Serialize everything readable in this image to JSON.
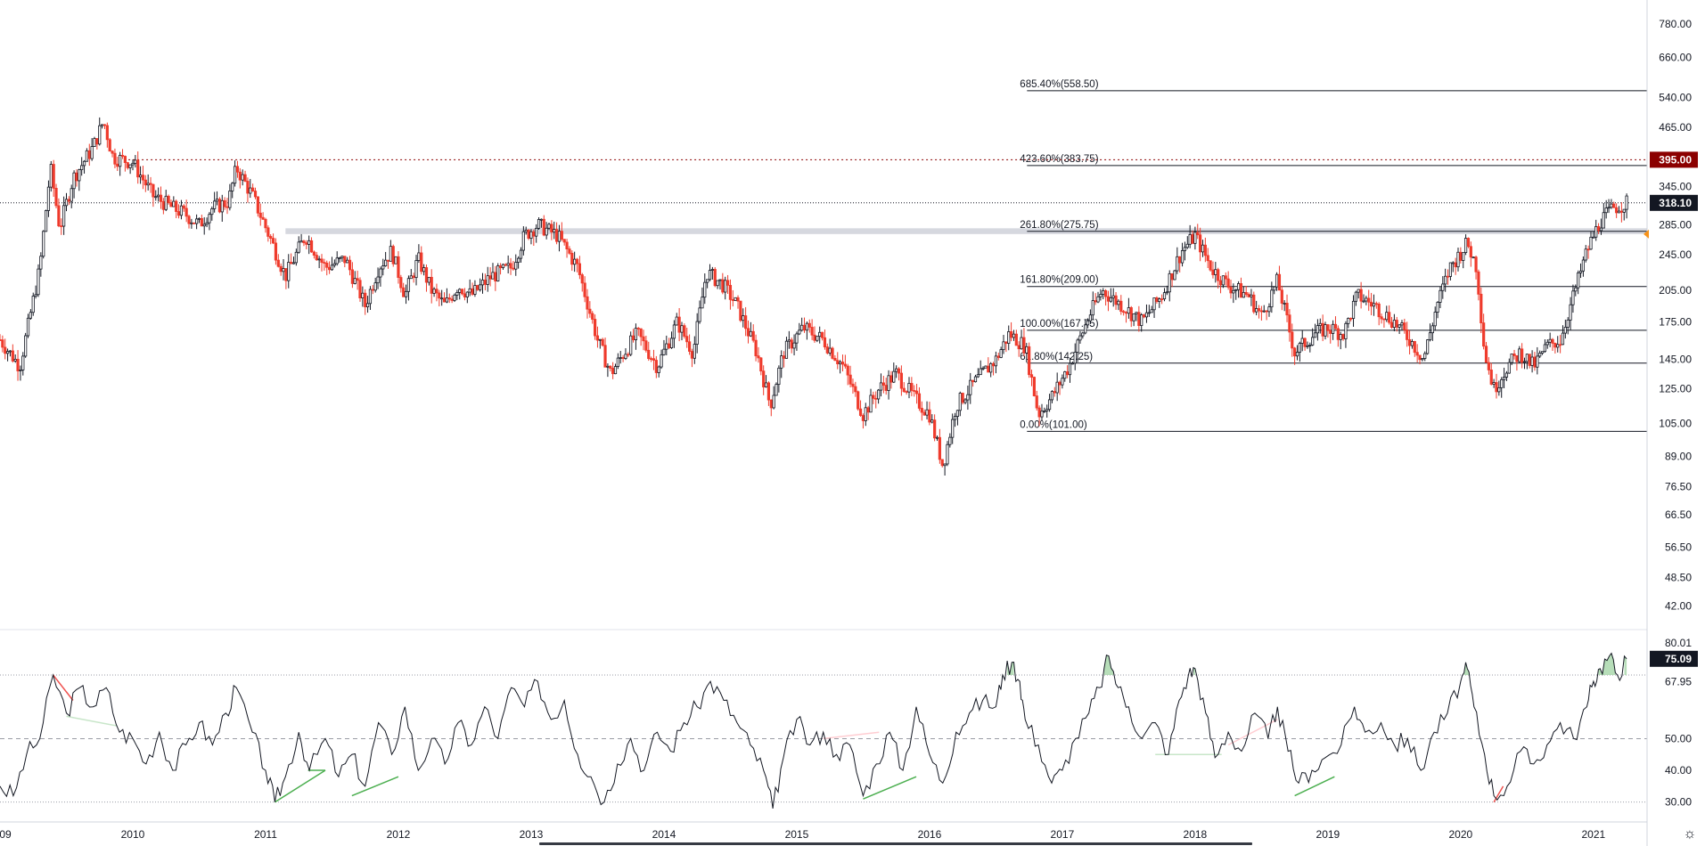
{
  "chart_data": [
    {
      "type": "candlestick",
      "scale": "log",
      "grid": false,
      "ylim": [
        38,
        850
      ],
      "price_ticks": [
        "780.00",
        "660.00",
        "540.00",
        "465.00",
        "395.00",
        "345.00",
        "318.10",
        "285.00",
        "245.00",
        "205.00",
        "175.00",
        "145.00",
        "125.00",
        "105.00",
        "89.00",
        "76.50",
        "66.50",
        "56.50",
        "48.50",
        "42.00"
      ],
      "x_ticks": [
        "09",
        "2010",
        "2011",
        "2012",
        "2013",
        "2014",
        "2015",
        "2016",
        "2017",
        "2018",
        "2019",
        "2020",
        "2021"
      ],
      "x_tick_years": [
        2009.0,
        2010.0,
        2011.0,
        2012.0,
        2013.0,
        2014.0,
        2015.0,
        2016.0,
        2017.0,
        2018.0,
        2019.0,
        2020.0,
        2021.0
      ],
      "xlim": [
        2009.0,
        2021.35
      ],
      "last_price": {
        "label": "318.10",
        "value": 318.1,
        "color": "#131722"
      },
      "alert_level": {
        "label": "395.00",
        "value": 395,
        "color": "#8b0000"
      },
      "resistance_zone": {
        "from": 2011.15,
        "low": 272,
        "high": 280
      },
      "fibonacci": {
        "start": 2016.6,
        "levels": [
          {
            "label": "685.40%(558.50)",
            "value": 558.5
          },
          {
            "label": "423.60%(383.75)",
            "value": 383.75
          },
          {
            "label": "261.80%(275.75)",
            "value": 275.75
          },
          {
            "label": "161.80%(209.00)",
            "value": 209.0
          },
          {
            "label": "100.00%(167.75)",
            "value": 167.75
          },
          {
            "label": "61.80%(142.25)",
            "value": 142.25
          },
          {
            "label": "0.00%(101.00)",
            "value": 101.0
          }
        ]
      },
      "price_path": [
        [
          2009.0,
          160
        ],
        [
          2009.15,
          140
        ],
        [
          2009.3,
          230
        ],
        [
          2009.38,
          380
        ],
        [
          2009.45,
          280
        ],
        [
          2009.55,
          360
        ],
        [
          2009.7,
          420
        ],
        [
          2009.78,
          480
        ],
        [
          2009.85,
          400
        ],
        [
          2010.0,
          390
        ],
        [
          2010.15,
          330
        ],
        [
          2010.3,
          310
        ],
        [
          2010.4,
          300
        ],
        [
          2010.5,
          285
        ],
        [
          2010.6,
          310
        ],
        [
          2010.72,
          320
        ],
        [
          2010.78,
          380
        ],
        [
          2010.9,
          330
        ],
        [
          2011.05,
          260
        ],
        [
          2011.15,
          220
        ],
        [
          2011.3,
          270
        ],
        [
          2011.45,
          230
        ],
        [
          2011.6,
          240
        ],
        [
          2011.75,
          190
        ],
        [
          2011.85,
          230
        ],
        [
          2011.95,
          250
        ],
        [
          2012.05,
          200
        ],
        [
          2012.15,
          240
        ],
        [
          2012.25,
          205
        ],
        [
          2012.35,
          190
        ],
        [
          2012.45,
          210
        ],
        [
          2012.55,
          200
        ],
        [
          2012.7,
          220
        ],
        [
          2012.85,
          230
        ],
        [
          2012.95,
          270
        ],
        [
          2013.05,
          285
        ],
        [
          2013.2,
          270
        ],
        [
          2013.35,
          230
        ],
        [
          2013.5,
          160
        ],
        [
          2013.6,
          135
        ],
        [
          2013.7,
          150
        ],
        [
          2013.8,
          165
        ],
        [
          2013.95,
          140
        ],
        [
          2014.1,
          175
        ],
        [
          2014.22,
          150
        ],
        [
          2014.32,
          225
        ],
        [
          2014.45,
          210
        ],
        [
          2014.55,
          190
        ],
        [
          2014.7,
          150
        ],
        [
          2014.8,
          115
        ],
        [
          2014.9,
          150
        ],
        [
          2015.05,
          170
        ],
        [
          2015.2,
          160
        ],
        [
          2015.35,
          140
        ],
        [
          2015.5,
          110
        ],
        [
          2015.62,
          125
        ],
        [
          2015.75,
          135
        ],
        [
          2015.88,
          120
        ],
        [
          2016.0,
          110
        ],
        [
          2016.1,
          85
        ],
        [
          2016.2,
          115
        ],
        [
          2016.35,
          130
        ],
        [
          2016.5,
          145
        ],
        [
          2016.6,
          165
        ],
        [
          2016.72,
          155
        ],
        [
          2016.82,
          110
        ],
        [
          2016.92,
          120
        ],
        [
          2017.05,
          140
        ],
        [
          2017.2,
          180
        ],
        [
          2017.3,
          205
        ],
        [
          2017.45,
          190
        ],
        [
          2017.6,
          175
        ],
        [
          2017.75,
          200
        ],
        [
          2017.9,
          250
        ],
        [
          2018.0,
          270
        ],
        [
          2018.12,
          230
        ],
        [
          2018.25,
          210
        ],
        [
          2018.4,
          200
        ],
        [
          2018.5,
          180
        ],
        [
          2018.62,
          215
        ],
        [
          2018.75,
          150
        ],
        [
          2018.9,
          165
        ],
        [
          2019.0,
          170
        ],
        [
          2019.12,
          165
        ],
        [
          2019.22,
          200
        ],
        [
          2019.35,
          190
        ],
        [
          2019.5,
          175
        ],
        [
          2019.62,
          160
        ],
        [
          2019.72,
          145
        ],
        [
          2019.82,
          190
        ],
        [
          2019.92,
          230
        ],
        [
          2020.05,
          260
        ],
        [
          2020.12,
          230
        ],
        [
          2020.18,
          150
        ],
        [
          2020.25,
          125
        ],
        [
          2020.35,
          140
        ],
        [
          2020.45,
          150
        ],
        [
          2020.55,
          140
        ],
        [
          2020.65,
          155
        ],
        [
          2020.75,
          160
        ],
        [
          2020.85,
          200
        ],
        [
          2020.95,
          250
        ],
        [
          2021.05,
          290
        ],
        [
          2021.15,
          310
        ],
        [
          2021.25,
          318.1
        ]
      ]
    },
    {
      "type": "line",
      "indicator": "oscillator",
      "ylim": [
        26,
        84
      ],
      "ticks": [
        "80.01",
        "67.95",
        "50.00",
        "40.00",
        "30.00"
      ],
      "tick_values": [
        80.01,
        67.95,
        50.0,
        40.0,
        30.0
      ],
      "bands": [
        70,
        50,
        30
      ],
      "last_value": {
        "label": "75.09",
        "value": 75.09
      },
      "overbought_fill_color": "#a5d6a7",
      "divergence_colors": {
        "bullish": "#4caf50",
        "bearish": "#ef5350",
        "bullish_faded": "#c8e6c9",
        "bearish_faded": "#ffcdd2"
      },
      "path": [
        [
          2009.0,
          35
        ],
        [
          2009.1,
          32
        ],
        [
          2009.2,
          45
        ],
        [
          2009.3,
          50
        ],
        [
          2009.4,
          70
        ],
        [
          2009.5,
          58
        ],
        [
          2009.6,
          66
        ],
        [
          2009.7,
          60
        ],
        [
          2009.8,
          66
        ],
        [
          2009.9,
          52
        ],
        [
          2010.0,
          50
        ],
        [
          2010.1,
          42
        ],
        [
          2010.2,
          52
        ],
        [
          2010.3,
          40
        ],
        [
          2010.4,
          48
        ],
        [
          2010.5,
          55
        ],
        [
          2010.6,
          48
        ],
        [
          2010.7,
          58
        ],
        [
          2010.78,
          66
        ],
        [
          2010.9,
          52
        ],
        [
          2011.0,
          40
        ],
        [
          2011.07,
          30
        ],
        [
          2011.15,
          38
        ],
        [
          2011.25,
          52
        ],
        [
          2011.33,
          40
        ],
        [
          2011.45,
          50
        ],
        [
          2011.55,
          38
        ],
        [
          2011.65,
          45
        ],
        [
          2011.75,
          35
        ],
        [
          2011.85,
          55
        ],
        [
          2011.95,
          45
        ],
        [
          2012.05,
          60
        ],
        [
          2012.15,
          40
        ],
        [
          2012.25,
          50
        ],
        [
          2012.35,
          42
        ],
        [
          2012.45,
          55
        ],
        [
          2012.55,
          48
        ],
        [
          2012.65,
          60
        ],
        [
          2012.75,
          50
        ],
        [
          2012.85,
          66
        ],
        [
          2012.95,
          60
        ],
        [
          2013.05,
          68
        ],
        [
          2013.15,
          56
        ],
        [
          2013.25,
          62
        ],
        [
          2013.35,
          45
        ],
        [
          2013.45,
          38
        ],
        [
          2013.55,
          30
        ],
        [
          2013.65,
          42
        ],
        [
          2013.75,
          50
        ],
        [
          2013.85,
          40
        ],
        [
          2013.95,
          52
        ],
        [
          2014.05,
          46
        ],
        [
          2014.15,
          55
        ],
        [
          2014.25,
          60
        ],
        [
          2014.35,
          68
        ],
        [
          2014.45,
          62
        ],
        [
          2014.55,
          55
        ],
        [
          2014.65,
          48
        ],
        [
          2014.75,
          40
        ],
        [
          2014.82,
          28
        ],
        [
          2014.9,
          44
        ],
        [
          2015.0,
          56
        ],
        [
          2015.1,
          48
        ],
        [
          2015.2,
          52
        ],
        [
          2015.3,
          45
        ],
        [
          2015.4,
          48
        ],
        [
          2015.5,
          32
        ],
        [
          2015.6,
          42
        ],
        [
          2015.7,
          52
        ],
        [
          2015.8,
          40
        ],
        [
          2015.9,
          60
        ],
        [
          2016.0,
          45
        ],
        [
          2016.1,
          36
        ],
        [
          2016.2,
          52
        ],
        [
          2016.3,
          58
        ],
        [
          2016.4,
          62
        ],
        [
          2016.5,
          60
        ],
        [
          2016.55,
          70
        ],
        [
          2016.62,
          74
        ],
        [
          2016.68,
          68
        ],
        [
          2016.72,
          56
        ],
        [
          2016.82,
          48
        ],
        [
          2016.92,
          36
        ],
        [
          2017.0,
          40
        ],
        [
          2017.1,
          50
        ],
        [
          2017.2,
          58
        ],
        [
          2017.28,
          66
        ],
        [
          2017.35,
          76
        ],
        [
          2017.42,
          66
        ],
        [
          2017.5,
          60
        ],
        [
          2017.6,
          50
        ],
        [
          2017.7,
          55
        ],
        [
          2017.8,
          45
        ],
        [
          2017.88,
          62
        ],
        [
          2017.95,
          70
        ],
        [
          2018.0,
          72
        ],
        [
          2018.08,
          58
        ],
        [
          2018.15,
          44
        ],
        [
          2018.25,
          52
        ],
        [
          2018.35,
          46
        ],
        [
          2018.45,
          58
        ],
        [
          2018.55,
          50
        ],
        [
          2018.62,
          60
        ],
        [
          2018.7,
          46
        ],
        [
          2018.78,
          36
        ],
        [
          2018.88,
          40
        ],
        [
          2018.98,
          44
        ],
        [
          2019.1,
          48
        ],
        [
          2019.2,
          60
        ],
        [
          2019.28,
          52
        ],
        [
          2019.4,
          55
        ],
        [
          2019.5,
          48
        ],
        [
          2019.6,
          50
        ],
        [
          2019.7,
          40
        ],
        [
          2019.8,
          52
        ],
        [
          2019.9,
          58
        ],
        [
          2020.0,
          68
        ],
        [
          2020.05,
          72
        ],
        [
          2020.1,
          60
        ],
        [
          2020.18,
          45
        ],
        [
          2020.25,
          32
        ],
        [
          2020.35,
          35
        ],
        [
          2020.45,
          46
        ],
        [
          2020.55,
          42
        ],
        [
          2020.65,
          48
        ],
        [
          2020.75,
          55
        ],
        [
          2020.85,
          50
        ],
        [
          2020.95,
          60
        ],
        [
          2021.0,
          68
        ],
        [
          2021.05,
          72
        ],
        [
          2021.12,
          76
        ],
        [
          2021.18,
          70
        ],
        [
          2021.25,
          75.09
        ]
      ]
    }
  ],
  "ui": {
    "settings_icon": "gear-icon"
  }
}
